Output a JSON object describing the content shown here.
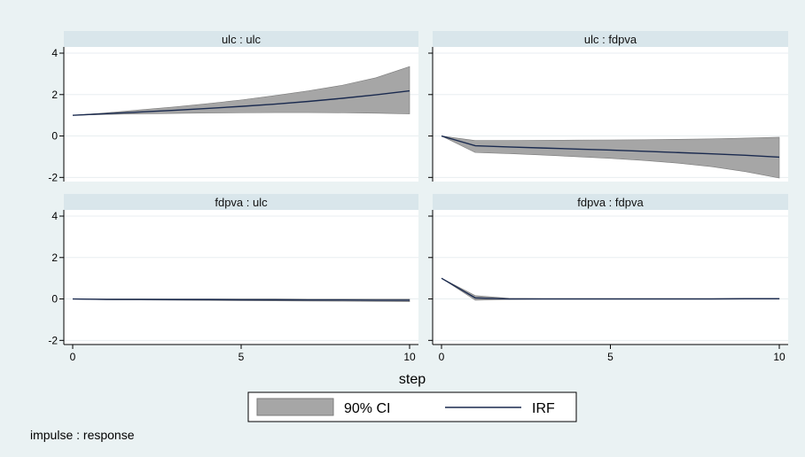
{
  "chart_data": {
    "type": "line",
    "xlabel": "step",
    "note": "impulse : response",
    "xlim": [
      0,
      10
    ],
    "ylim": [
      -2.2,
      4.3
    ],
    "x_ticks": [
      "0",
      "5",
      "10"
    ],
    "y_ticks": [
      "4",
      "2",
      "0",
      "-2"
    ],
    "x_tick_values": [
      0,
      5,
      10
    ],
    "y_tick_values": [
      4,
      2,
      0,
      -2
    ],
    "legend": [
      {
        "label": "90% CI",
        "kind": "band"
      },
      {
        "label": "IRF",
        "kind": "line"
      }
    ],
    "colors": {
      "band": "#a6a6a6",
      "line": "#1a2a4f",
      "header": "#d9e6eb",
      "background": "#eaf2f3"
    },
    "x": [
      0,
      1,
      2,
      3,
      4,
      5,
      6,
      7,
      8,
      9,
      10
    ],
    "panels": [
      {
        "title": "ulc : ulc",
        "irf": [
          1.0,
          1.08,
          1.16,
          1.24,
          1.33,
          1.43,
          1.54,
          1.67,
          1.82,
          1.99,
          2.18
        ],
        "lower": [
          1.0,
          1.04,
          1.07,
          1.09,
          1.11,
          1.12,
          1.13,
          1.13,
          1.12,
          1.1,
          1.07
        ],
        "upper": [
          1.0,
          1.12,
          1.26,
          1.4,
          1.56,
          1.74,
          1.95,
          2.18,
          2.45,
          2.81,
          3.35
        ]
      },
      {
        "title": "ulc : fdpva",
        "irf": [
          0.0,
          -0.47,
          -0.53,
          -0.58,
          -0.63,
          -0.68,
          -0.74,
          -0.8,
          -0.86,
          -0.93,
          -1.02
        ],
        "lower": [
          0.0,
          -0.8,
          -0.85,
          -0.92,
          -1.0,
          -1.08,
          -1.18,
          -1.31,
          -1.48,
          -1.72,
          -2.03
        ],
        "upper": [
          0.0,
          -0.22,
          -0.22,
          -0.21,
          -0.2,
          -0.19,
          -0.18,
          -0.16,
          -0.14,
          -0.1,
          -0.06
        ]
      },
      {
        "title": "fdpva : ulc",
        "irf": [
          0.0,
          -0.02,
          -0.02,
          -0.03,
          -0.03,
          -0.04,
          -0.04,
          -0.05,
          -0.05,
          -0.06,
          -0.06
        ],
        "lower": [
          0.0,
          -0.04,
          -0.05,
          -0.06,
          -0.07,
          -0.08,
          -0.09,
          -0.1,
          -0.11,
          -0.12,
          -0.13
        ],
        "upper": [
          0.0,
          0.0,
          0.0,
          0.0,
          0.0,
          0.0,
          0.0,
          -0.01,
          -0.01,
          -0.01,
          -0.01
        ]
      },
      {
        "title": "fdpva : fdpva",
        "irf": [
          1.0,
          0.05,
          0.0,
          0.0,
          0.0,
          0.0,
          0.0,
          0.0,
          0.0,
          0.01,
          0.01
        ],
        "lower": [
          1.0,
          -0.06,
          -0.02,
          -0.01,
          -0.01,
          -0.01,
          -0.01,
          -0.01,
          -0.01,
          -0.01,
          -0.01
        ],
        "upper": [
          1.0,
          0.16,
          0.03,
          0.02,
          0.02,
          0.02,
          0.02,
          0.02,
          0.02,
          0.03,
          0.03
        ]
      }
    ]
  }
}
